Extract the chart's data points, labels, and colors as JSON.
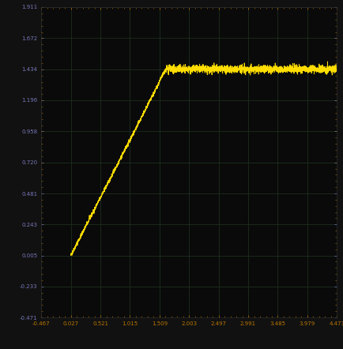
{
  "background_color": "#111111",
  "plot_bg_color": "#0a0a0a",
  "line_color": "#ffdd00",
  "grid_color": "#1e2e1e",
  "tick_color": "#bb7700",
  "label_color": "#7777bb",
  "xlim": [
    -0.467,
    4.473
  ],
  "ylim": [
    -0.471,
    1.911
  ],
  "xticks": [
    -0.467,
    0.027,
    0.521,
    1.015,
    1.509,
    2.003,
    2.497,
    2.991,
    3.485,
    3.979,
    4.473
  ],
  "yticks": [
    -0.471,
    -0.233,
    0.005,
    0.243,
    0.481,
    0.72,
    0.958,
    1.196,
    1.434,
    1.672,
    1.911
  ],
  "x_labels": [
    "-0.467",
    "0.027",
    "0.521",
    "1.015",
    "1.509",
    "2.003",
    "2.497",
    "2.991",
    "3.485",
    "3.979",
    "4.473"
  ],
  "y_labels": [
    "-0.471",
    "-0.233",
    "0.005",
    "0.243",
    "0.481",
    "0.720",
    "0.958",
    "1.196",
    "1.434",
    "1.672",
    "1.911"
  ],
  "x_start": 0.027,
  "x_end": 4.47,
  "y_start": 0.005,
  "y_plateau": 1.434,
  "x_knee": 1.62,
  "knee_sharpness": 25.0,
  "noise_scale_linear": 0.008,
  "noise_scale_plateau": 0.015,
  "n_points": 3000
}
